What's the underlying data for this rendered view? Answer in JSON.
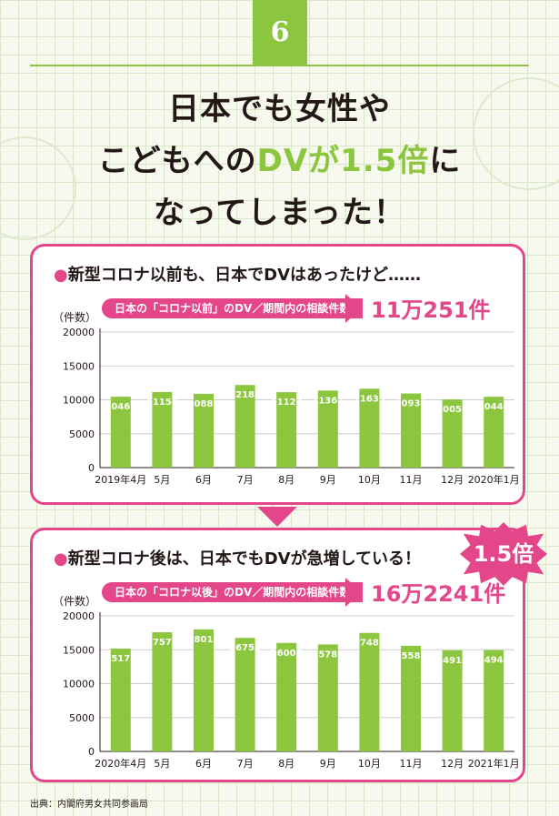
{
  "badge": "6",
  "title": {
    "line1": "日本でも女性や",
    "line2_a": "こどもへの",
    "line2_b": "DVが1.5倍",
    "line2_c": "に",
    "line3": "なってしまった！"
  },
  "panel1": {
    "dot": "●",
    "heading": "新型コロナ以前も、日本でDVはあったけど……",
    "pill": "日本の「コロナ以前」のDV／期間内の相談件数",
    "total": "11万251件",
    "unit": "（件数）"
  },
  "panel2": {
    "dot": "●",
    "heading": "新型コロナ後は、日本でもDVが急増している！",
    "pill": "日本の「コロナ以後」のDV／期間内の相談件数",
    "total": "16万2241件",
    "unit": "（件数）",
    "burst": "1.5倍"
  },
  "source": "出典：内閣府男女共同参画局",
  "colors": {
    "bar": "#8cc63f",
    "accent": "#e4468a",
    "grid": "#cccccc"
  },
  "chart_data": [
    {
      "type": "bar",
      "categories": [
        "2019年4月",
        "5月",
        "6月",
        "7月",
        "8月",
        "9月",
        "10月",
        "11月",
        "12月",
        "2020年1月"
      ],
      "values": [
        10461,
        11150,
        10889,
        12184,
        11123,
        11367,
        11639,
        10938,
        10054,
        10446
      ],
      "ylabel": "（件数）",
      "ylim": [
        0,
        20000
      ],
      "yticks": [
        0,
        5000,
        10000,
        15000,
        20000
      ],
      "grid": true
    },
    {
      "type": "bar",
      "categories": [
        "2020年4月",
        "5月",
        "6月",
        "7月",
        "8月",
        "9月",
        "10月",
        "11月",
        "12月",
        "2021年1月"
      ],
      "values": [
        15172,
        17576,
        18013,
        16753,
        16006,
        15786,
        17487,
        15586,
        14916,
        14946
      ],
      "ylabel": "（件数）",
      "ylim": [
        0,
        20000
      ],
      "yticks": [
        0,
        5000,
        10000,
        15000,
        20000
      ],
      "grid": true
    }
  ]
}
